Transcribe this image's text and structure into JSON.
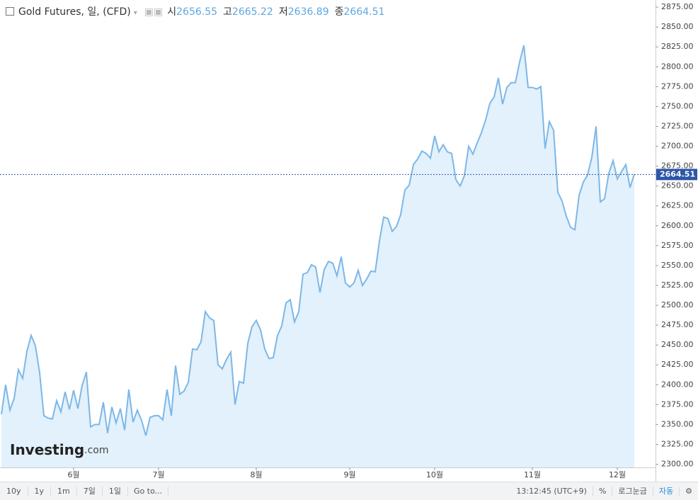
{
  "header": {
    "title": "Gold Futures, 일, (CFD)",
    "open_label": "시",
    "open": "2656.55",
    "high_label": "고",
    "high": "2665.22",
    "low_label": "저",
    "low": "2636.89",
    "close_label": "종",
    "close": "2664.51"
  },
  "chart_data": {
    "type": "area",
    "color": "#7db7e8",
    "fill": "#e2f1fb",
    "values": [
      2363,
      2400,
      2368,
      2383,
      2419,
      2408,
      2442,
      2462,
      2449,
      2415,
      2361,
      2358,
      2357,
      2380,
      2366,
      2391,
      2369,
      2393,
      2370,
      2399,
      2416,
      2347,
      2350,
      2350,
      2378,
      2339,
      2372,
      2352,
      2370,
      2343,
      2394,
      2353,
      2368,
      2355,
      2336,
      2359,
      2361,
      2361,
      2356,
      2394,
      2361,
      2424,
      2388,
      2392,
      2403,
      2445,
      2444,
      2454,
      2492,
      2484,
      2481,
      2425,
      2420,
      2432,
      2441,
      2375,
      2404,
      2402,
      2452,
      2473,
      2481,
      2469,
      2445,
      2433,
      2434,
      2462,
      2474,
      2503,
      2507,
      2479,
      2492,
      2539,
      2541,
      2551,
      2548,
      2516,
      2545,
      2555,
      2553,
      2537,
      2561,
      2528,
      2523,
      2528,
      2544,
      2525,
      2533,
      2543,
      2542,
      2581,
      2611,
      2609,
      2593,
      2599,
      2614,
      2645,
      2651,
      2677,
      2684,
      2694,
      2691,
      2685,
      2713,
      2693,
      2702,
      2693,
      2691,
      2658,
      2650,
      2663,
      2700,
      2690,
      2704,
      2717,
      2733,
      2754,
      2762,
      2786,
      2753,
      2774,
      2780,
      2780,
      2806,
      2827,
      2774,
      2774,
      2772,
      2775,
      2697,
      2731,
      2720,
      2642,
      2631,
      2612,
      2598,
      2595,
      2638,
      2655,
      2664,
      2686,
      2725,
      2630,
      2634,
      2666,
      2682,
      2659,
      2668,
      2677,
      2648,
      2665
    ],
    "xlim": [
      0,
      154
    ],
    "xticks": [
      {
        "value": 17,
        "label": "6월"
      },
      {
        "value": 37,
        "label": "7월"
      },
      {
        "value": 60,
        "label": "8월"
      },
      {
        "value": 82,
        "label": "9월"
      },
      {
        "value": 102,
        "label": "10월"
      },
      {
        "value": 125,
        "label": "11월"
      },
      {
        "value": 145,
        "label": "12월"
      }
    ],
    "ylim": [
      2296,
      2884
    ],
    "yticks": [
      {
        "value": 2300,
        "label": "2300.00"
      },
      {
        "value": 2325,
        "label": "2325.00"
      },
      {
        "value": 2350,
        "label": "2350.00"
      },
      {
        "value": 2375,
        "label": "2375.00"
      },
      {
        "value": 2400,
        "label": "2400.00"
      },
      {
        "value": 2425,
        "label": "2425.00"
      },
      {
        "value": 2450,
        "label": "2450.00"
      },
      {
        "value": 2475,
        "label": "2475.00"
      },
      {
        "value": 2500,
        "label": "2500.00"
      },
      {
        "value": 2525,
        "label": "2525.00"
      },
      {
        "value": 2550,
        "label": "2550.00"
      },
      {
        "value": 2575,
        "label": "2575.00"
      },
      {
        "value": 2600,
        "label": "2600.00"
      },
      {
        "value": 2625,
        "label": "2625.00"
      },
      {
        "value": 2650,
        "label": "2650.00"
      },
      {
        "value": 2675,
        "label": "2675.00"
      },
      {
        "value": 2700,
        "label": "2700.00"
      },
      {
        "value": 2725,
        "label": "2725.00"
      },
      {
        "value": 2750,
        "label": "2750.00"
      },
      {
        "value": 2775,
        "label": "2775.00"
      },
      {
        "value": 2800,
        "label": "2800.00"
      },
      {
        "value": 2825,
        "label": "2825.00"
      },
      {
        "value": 2850,
        "label": "2850.00"
      },
      {
        "value": 2875,
        "label": "2875.00"
      }
    ],
    "last_price": {
      "value": 2664.51,
      "label": "2664.51"
    },
    "logo": {
      "brand": "Investing",
      "suffix": ".com"
    }
  },
  "toolbar": {
    "ranges": [
      "10y",
      "1y",
      "1m",
      "7일",
      "1일"
    ],
    "goto": "Go to...",
    "time": "13:12:45 (UTC+9)",
    "percent": "%",
    "log": "로그눈금",
    "auto": "자동"
  }
}
